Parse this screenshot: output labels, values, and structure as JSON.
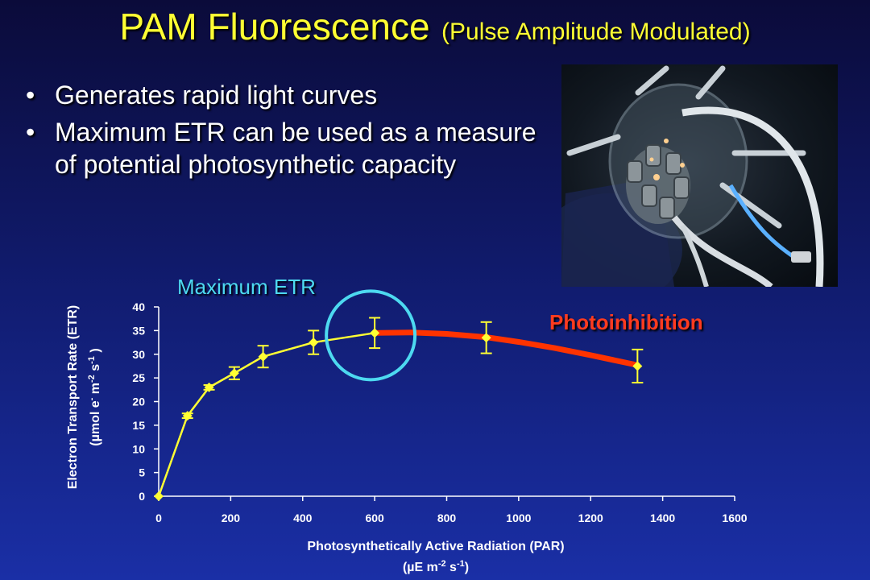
{
  "title": {
    "main": "PAM Fluorescence",
    "sub": "(Pulse Amplitude Modulated)"
  },
  "bullets": [
    "Generates rapid light curves",
    "Maximum ETR can be used as a measure of potential photosynthetic capacity"
  ],
  "annotations": {
    "max_etr": "Maximum ETR",
    "photoinhibition": "Photoinhibition"
  },
  "photo": {
    "icon": "pam-fluorometer-photo"
  },
  "colors": {
    "curve": "#ffff33",
    "photoinhibition_line": "#ff3300",
    "circle": "#4dd9f0",
    "axis": "#ffffff",
    "text": "#ffffff"
  },
  "chart_data": {
    "type": "scatter",
    "title": "",
    "xlabel": "Photosynthetically Active Radiation (PAR)",
    "xlabel_unit": [
      "(µE m",
      "-2",
      " s",
      "-1",
      ")"
    ],
    "ylabel": "Electron Transport Rate (ETR)",
    "ylabel_unit": [
      "(µmol e",
      "-",
      " m",
      "-2",
      " s",
      "-1",
      " )"
    ],
    "xlim": [
      0,
      1600
    ],
    "ylim": [
      0,
      40
    ],
    "xticks": [
      0,
      200,
      400,
      600,
      800,
      1000,
      1200,
      1400,
      1600
    ],
    "yticks": [
      0,
      5,
      10,
      15,
      20,
      25,
      30,
      35,
      40
    ],
    "grid": false,
    "series": [
      {
        "x": [
          0,
          80,
          140,
          210,
          290,
          430,
          600,
          910,
          1330
        ],
        "y": [
          0,
          17,
          23,
          26,
          29.5,
          32.5,
          34.5,
          33.5,
          27.5
        ],
        "error": [
          0,
          0.5,
          0.5,
          1.3,
          2.3,
          2.5,
          3.2,
          3.3,
          3.5
        ]
      }
    ],
    "photoinhibition_fit": {
      "x": [
        600,
        700,
        800,
        910,
        1000,
        1100,
        1200,
        1330
      ],
      "y": [
        34.5,
        34.6,
        34.3,
        33.6,
        32.6,
        31.3,
        29.8,
        27.7
      ]
    },
    "highlight_circle": {
      "x": 600,
      "y": 34.5
    }
  }
}
